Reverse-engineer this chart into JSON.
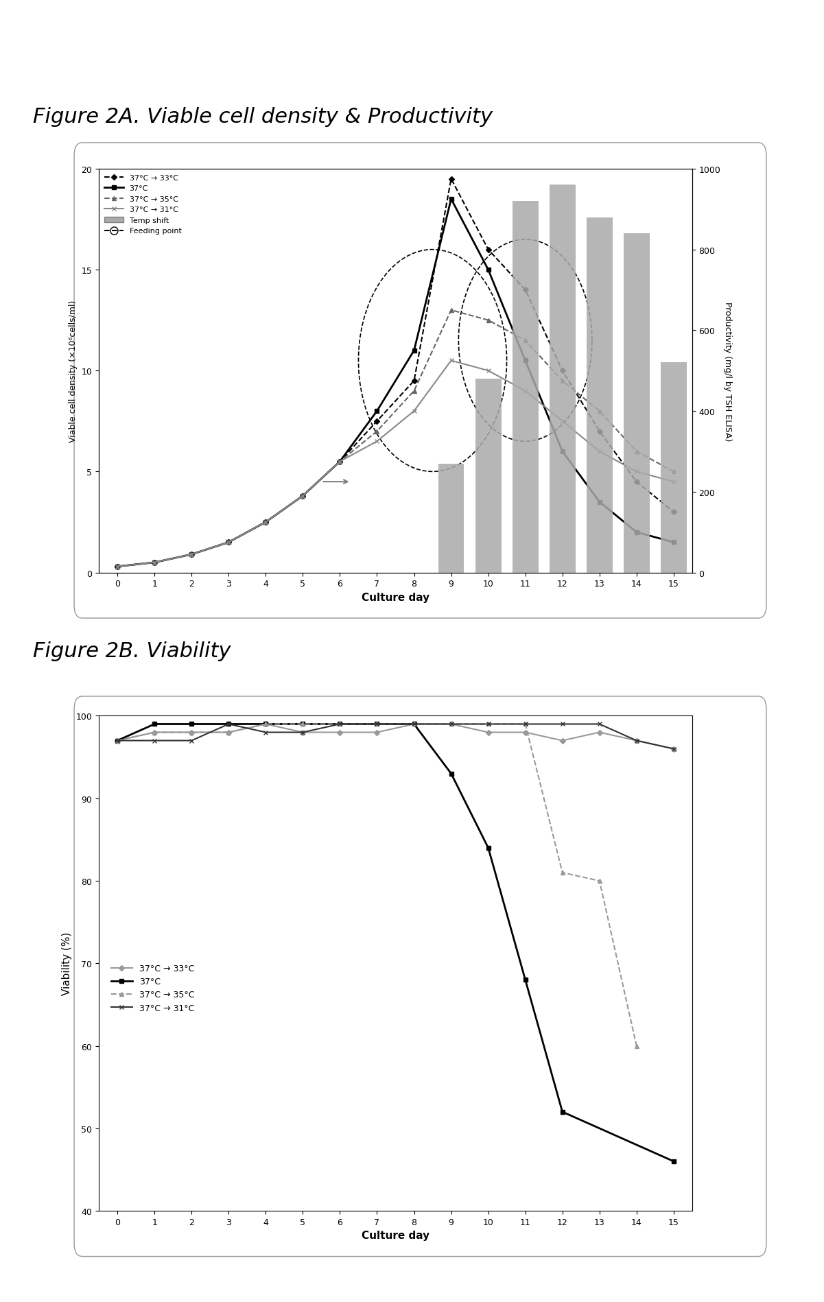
{
  "fig2a_title": "Figure 2A. Viable cell density & Productivity",
  "fig2b_title": "Figure 2B. Viability",
  "culture_days": [
    0,
    1,
    2,
    3,
    4,
    5,
    6,
    7,
    8,
    9,
    10,
    11,
    12,
    13,
    14,
    15
  ],
  "vcd_33": [
    0.3,
    0.5,
    0.9,
    1.5,
    2.5,
    3.8,
    5.5,
    7.5,
    9.5,
    19.5,
    16.0,
    14.0,
    10.0,
    7.0,
    4.5,
    3.0
  ],
  "vcd_37": [
    0.3,
    0.5,
    0.9,
    1.5,
    2.5,
    3.8,
    5.5,
    8.0,
    11.0,
    18.5,
    15.0,
    10.5,
    6.0,
    3.5,
    2.0,
    1.5
  ],
  "vcd_35": [
    0.3,
    0.5,
    0.9,
    1.5,
    2.5,
    3.8,
    5.5,
    7.0,
    9.0,
    13.0,
    12.5,
    11.5,
    9.5,
    8.0,
    6.0,
    5.0
  ],
  "vcd_31": [
    0.3,
    0.5,
    0.9,
    1.5,
    2.5,
    3.8,
    5.5,
    6.5,
    8.0,
    10.5,
    10.0,
    9.0,
    7.5,
    6.0,
    5.0,
    4.5
  ],
  "bar_days": [
    9,
    10,
    11,
    12,
    13,
    14,
    15
  ],
  "bar_values": [
    270,
    480,
    920,
    960,
    880,
    840,
    520
  ],
  "viability_33": [
    97,
    98,
    98,
    98,
    99,
    98,
    98,
    98,
    99,
    99,
    98,
    98,
    97,
    98,
    97,
    96
  ],
  "viability_37": [
    97,
    99,
    99,
    99,
    99,
    99,
    99,
    99,
    99,
    93,
    84,
    68,
    52,
    null,
    null,
    46
  ],
  "viability_35": [
    97,
    98,
    98,
    98,
    99,
    99,
    99,
    99,
    99,
    99,
    99,
    99,
    81,
    80,
    60,
    null
  ],
  "viability_31": [
    97,
    97,
    97,
    99,
    98,
    98,
    99,
    99,
    99,
    99,
    99,
    99,
    99,
    99,
    97,
    96
  ],
  "label_33": "37°C → 33°C",
  "label_37": "37°C",
  "label_35": "37°C → 35°C",
  "label_31": "37°C → 31°C",
  "label_temp": "Temp shift",
  "label_feed": "Feeding point",
  "color_33": "#000000",
  "color_37": "#000000",
  "color_35": "#888888",
  "color_31": "#000000",
  "color_bar": "#888888",
  "vcd_ylim": [
    0,
    20
  ],
  "prod_ylim": [
    0,
    1000
  ],
  "viab_ylim": [
    40,
    100
  ],
  "xlabel": "Culture day",
  "ylabel_vcd": "Viable cell density (×10⁶cells/ml)",
  "ylabel_prod": "Productivity (mg/l by TSH ELISA)",
  "ylabel_viab": "Viability (%)"
}
